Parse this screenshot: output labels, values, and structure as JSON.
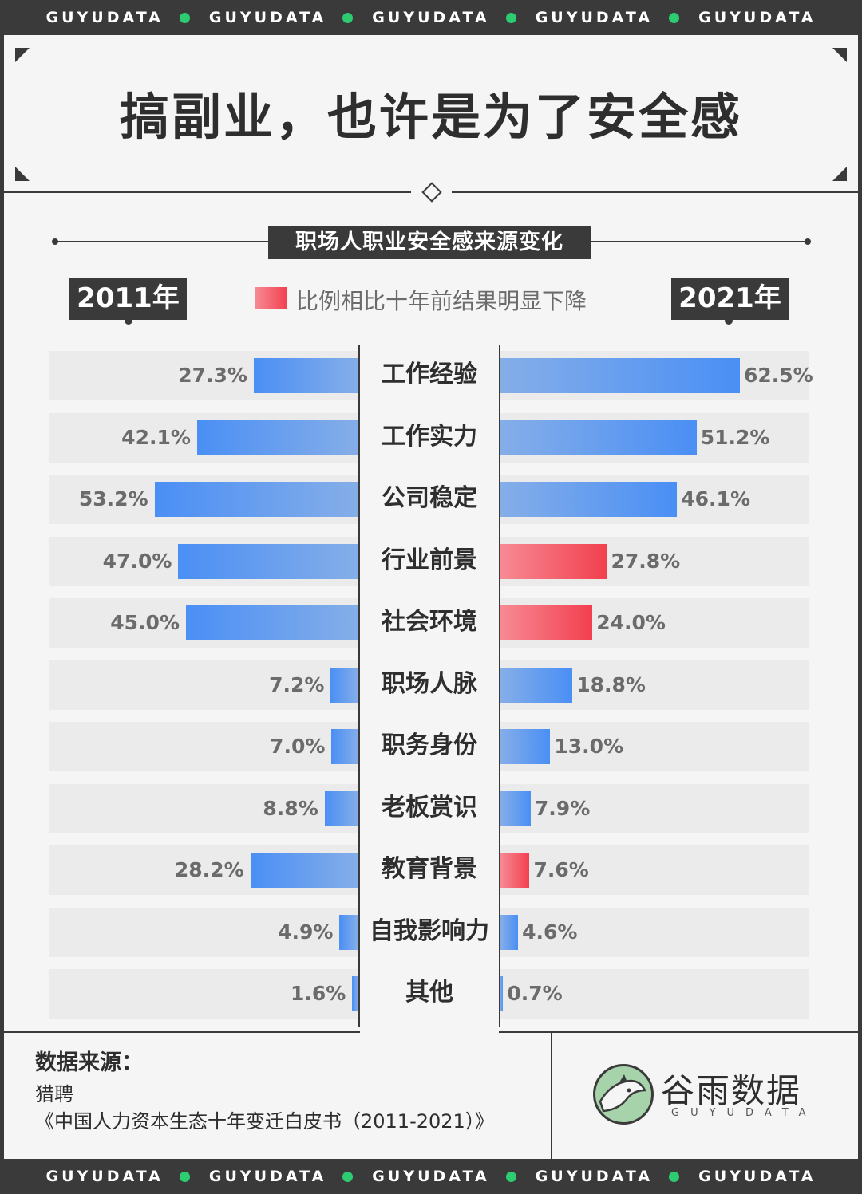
{
  "strip_word": "GUYUDATA",
  "strip_repeat": 5,
  "title": "搞副业，也许是为了安全感",
  "subtitle": "职场人职业安全感来源变化",
  "year_left": "2011年",
  "year_right": "2021年",
  "legend": "比例相比十年前结果明显下降",
  "colors": {
    "dark": "#3a3a3a",
    "blue": "#4a8ff5",
    "red": "#f2404f",
    "accent_dot": "#2ecc71"
  },
  "chart_data": {
    "type": "bar",
    "orientation": "horizontal-butterfly",
    "categories": [
      "工作经验",
      "工作实力",
      "公司稳定",
      "行业前景",
      "社会环境",
      "职场人脉",
      "职务身份",
      "老板赏识",
      "教育背景",
      "自我影响力",
      "其他"
    ],
    "series": [
      {
        "name": "2011年",
        "values": [
          27.3,
          42.1,
          53.2,
          47.0,
          45.0,
          7.2,
          7.0,
          8.8,
          28.2,
          4.9,
          1.6
        ],
        "labels": [
          "27.3%",
          "42.1%",
          "53.2%",
          "47.0%",
          "45.0%",
          "7.2%",
          "7.0%",
          "8.8%",
          "28.2%",
          "4.9%",
          "1.6%"
        ]
      },
      {
        "name": "2021年",
        "values": [
          62.5,
          51.2,
          46.1,
          27.8,
          24.0,
          18.8,
          13.0,
          7.9,
          7.6,
          4.6,
          0.7
        ],
        "labels": [
          "62.5%",
          "51.2%",
          "46.1%",
          "27.8%",
          "24.0%",
          "18.8%",
          "13.0%",
          "7.9%",
          "7.6%",
          "4.6%",
          "0.7%"
        ],
        "decreased": [
          false,
          false,
          false,
          true,
          true,
          false,
          false,
          false,
          true,
          false,
          false
        ]
      }
    ]
  },
  "source": {
    "heading": "数据来源：",
    "lines": [
      "猎聘",
      "《中国人力资本生态十年变迁白皮书（2011-2021）》"
    ]
  },
  "logo": {
    "name": "谷雨数据",
    "sub": "GUYUDATA"
  }
}
